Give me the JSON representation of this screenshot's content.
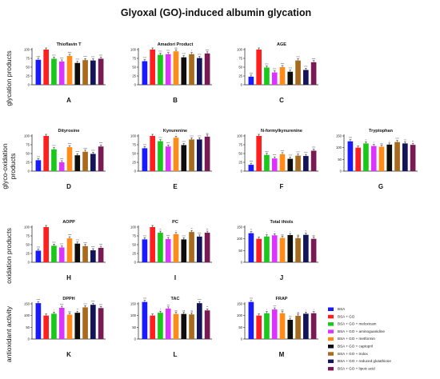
{
  "figure_title": "Glyoxal (GO)-induced albumin glycation",
  "row_labels": [
    [
      "glycation products"
    ],
    [
      "glyco-oxidation",
      "products"
    ],
    [
      "oxidation products"
    ],
    [
      "antioxidant activity"
    ]
  ],
  "legend": {
    "items": [
      {
        "label": "BSA",
        "color": "#1a1aff"
      },
      {
        "label": "BSA + GO",
        "color": "#ff1f1f"
      },
      {
        "label": "BSA + GO + meloxicam",
        "color": "#19c819"
      },
      {
        "label": "BSA + GO + aminoguanidine",
        "color": "#dd33ff"
      },
      {
        "label": "BSA + GO + metformin",
        "color": "#ff8c19"
      },
      {
        "label": "BSA + GO + captopril",
        "color": "#0d0d0d"
      },
      {
        "label": "BSA + GO + trolox",
        "color": "#a86a1c"
      },
      {
        "label": "BSA + GO + reduced glutathione",
        "color": "#14145a"
      },
      {
        "label": "BSA + GO + lipoic acid",
        "color": "#7a1a54"
      }
    ]
  },
  "chart_data": [
    {
      "type": "bar",
      "panel": "A",
      "title": "Thioflavin T",
      "ylim": [
        0,
        100
      ],
      "yticks": [
        0,
        25,
        50,
        75,
        100
      ],
      "categories": [
        "BSA",
        "BSA + GO",
        "BSA + GO + meloxicam",
        "BSA + GO + aminoguanidine",
        "BSA + GO + metformin",
        "BSA + GO + captopril",
        "BSA + GO + trolox",
        "BSA + GO + reduced glutathione",
        "BSA + GO + lipoic acid"
      ],
      "values": [
        71,
        100,
        74,
        66,
        82,
        62,
        70,
        69,
        74
      ],
      "annotations": [
        "****",
        "",
        "****",
        "****",
        "****",
        "****",
        "****",
        "****",
        "****"
      ]
    },
    {
      "type": "bar",
      "panel": "B",
      "title": "Amadori Product",
      "ylim": [
        0,
        100
      ],
      "yticks": [
        0,
        25,
        50,
        75,
        100
      ],
      "categories": [
        "BSA",
        "BSA + GO",
        "BSA + GO + meloxicam",
        "BSA + GO + aminoguanidine",
        "BSA + GO + metformin",
        "BSA + GO + captopril",
        "BSA + GO + trolox",
        "BSA + GO + reduced glutathione",
        "BSA + GO + lipoic acid"
      ],
      "values": [
        67,
        100,
        85,
        87,
        95,
        78,
        87,
        76,
        89
      ],
      "annotations": [
        "****",
        "",
        "****",
        "****",
        "ns",
        "****",
        "*",
        "****",
        "****"
      ]
    },
    {
      "type": "bar",
      "panel": "C",
      "title": "AGE",
      "ylim": [
        0,
        100
      ],
      "yticks": [
        0,
        25,
        50,
        75,
        100
      ],
      "categories": [
        "BSA",
        "BSA + GO",
        "BSA + GO + meloxicam",
        "BSA + GO + aminoguanidine",
        "BSA + GO + metformin",
        "BSA + GO + captopril",
        "BSA + GO + trolox",
        "BSA + GO + reduced glutathione",
        "BSA + GO + lipoic acid"
      ],
      "values": [
        23,
        100,
        49,
        35,
        50,
        37,
        69,
        42,
        64
      ],
      "annotations": [
        "****",
        "",
        "****",
        "****",
        "****",
        "****",
        "****",
        "****",
        "****"
      ]
    },
    {
      "type": "bar",
      "panel": "D",
      "title": "Dityrosine",
      "ylim": [
        0,
        100
      ],
      "yticks": [
        0,
        25,
        50,
        75,
        100
      ],
      "categories": [
        "BSA",
        "BSA + GO",
        "BSA + GO + meloxicam",
        "BSA + GO + aminoguanidine",
        "BSA + GO + metformin",
        "BSA + GO + captopril",
        "BSA + GO + trolox",
        "BSA + GO + reduced glutathione",
        "BSA + GO + lipoic acid"
      ],
      "values": [
        31,
        100,
        62,
        25,
        68,
        45,
        55,
        49,
        70
      ],
      "annotations": [
        "****",
        "",
        "****",
        "****",
        "****",
        "****",
        "****",
        "****",
        "****"
      ]
    },
    {
      "type": "bar",
      "panel": "E",
      "title": "Kynurenine",
      "ylim": [
        0,
        100
      ],
      "yticks": [
        0,
        25,
        50,
        75,
        100
      ],
      "categories": [
        "BSA",
        "BSA + GO",
        "BSA + GO + meloxicam",
        "BSA + GO + aminoguanidine",
        "BSA + GO + metformin",
        "BSA + GO + captopril",
        "BSA + GO + trolox",
        "BSA + GO + reduced glutathione",
        "BSA + GO + lipoic acid"
      ],
      "values": [
        65,
        100,
        85,
        70,
        95,
        74,
        90,
        90,
        98
      ],
      "annotations": [
        "****",
        "",
        "****",
        "****",
        "*",
        "****",
        "****",
        "****",
        "ns"
      ]
    },
    {
      "type": "bar",
      "panel": "F",
      "title": "N-formylkynurenine",
      "ylim": [
        0,
        100
      ],
      "yticks": [
        0,
        25,
        50,
        75,
        100
      ],
      "categories": [
        "BSA",
        "BSA + GO",
        "BSA + GO + meloxicam",
        "BSA + GO + aminoguanidine",
        "BSA + GO + metformin",
        "BSA + GO + captopril",
        "BSA + GO + trolox",
        "BSA + GO + reduced glutathione",
        "BSA + GO + lipoic acid"
      ],
      "values": [
        18,
        100,
        46,
        36,
        48,
        35,
        44,
        43,
        58
      ],
      "annotations": [
        "****",
        "",
        "****",
        "****",
        "****",
        "****",
        "****",
        "****",
        "****"
      ]
    },
    {
      "type": "bar",
      "panel": "G",
      "title": "Tryptophan",
      "ylim": [
        0,
        150
      ],
      "yticks": [
        0,
        50,
        100,
        150
      ],
      "categories": [
        "BSA",
        "BSA + GO",
        "BSA + GO + meloxicam",
        "BSA + GO + aminoguanidine",
        "BSA + GO + metformin",
        "BSA + GO + captopril",
        "BSA + GO + trolox",
        "BSA + GO + reduced glutathione",
        "BSA + GO + lipoic acid"
      ],
      "values": [
        127,
        100,
        118,
        107,
        104,
        113,
        124,
        118,
        112
      ],
      "annotations": [
        "****",
        "",
        "**",
        "*",
        "ns",
        "*",
        "****",
        "***",
        "**"
      ]
    },
    {
      "type": "bar",
      "panel": "H",
      "title": "AOPP",
      "ylim": [
        0,
        100
      ],
      "yticks": [
        0,
        25,
        50,
        75,
        100
      ],
      "categories": [
        "BSA",
        "BSA + GO",
        "BSA + GO + meloxicam",
        "BSA + GO + aminoguanidine",
        "BSA + GO + metformin",
        "BSA + GO + captopril",
        "BSA + GO + trolox",
        "BSA + GO + reduced glutathione",
        "BSA + GO + lipoic acid"
      ],
      "values": [
        33,
        100,
        47,
        42,
        68,
        53,
        46,
        34,
        41
      ],
      "annotations": [
        "****",
        "",
        "****",
        "****",
        "****",
        "****",
        "****",
        "****",
        "****"
      ]
    },
    {
      "type": "bar",
      "panel": "I",
      "title": "PC",
      "ylim": [
        0,
        100
      ],
      "yticks": [
        0,
        25,
        50,
        75,
        100
      ],
      "categories": [
        "BSA",
        "BSA + GO",
        "BSA + GO + meloxicam",
        "BSA + GO + aminoguanidine",
        "BSA + GO + metformin",
        "BSA + GO + captopril",
        "BSA + GO + trolox",
        "BSA + GO + reduced glutathione",
        "BSA + GO + lipoic acid"
      ],
      "values": [
        65,
        100,
        84,
        66,
        80,
        65,
        86,
        73,
        84
      ],
      "annotations": [
        "****",
        "",
        "**",
        "****",
        "*",
        "****",
        "**",
        "****",
        "**"
      ]
    },
    {
      "type": "bar",
      "panel": "J",
      "title": "Total thiols",
      "ylim": [
        0,
        150
      ],
      "yticks": [
        0,
        50,
        100,
        150
      ],
      "categories": [
        "BSA",
        "BSA + GO",
        "BSA + GO + meloxicam",
        "BSA + GO + aminoguanidine",
        "BSA + GO + metformin",
        "BSA + GO + captopril",
        "BSA + GO + trolox",
        "BSA + GO + reduced glutathione",
        "BSA + GO + lipoic acid"
      ],
      "values": [
        124,
        100,
        110,
        115,
        104,
        116,
        103,
        117,
        100
      ],
      "annotations": [
        "**",
        "",
        "*",
        "*",
        "ns",
        "*",
        "ns",
        "**",
        "ns"
      ]
    },
    {
      "type": "bar",
      "panel": "K",
      "title": "DPPH",
      "ylim": [
        0,
        150
      ],
      "yticks": [
        0,
        50,
        100,
        150
      ],
      "categories": [
        "BSA",
        "BSA + GO",
        "BSA + GO + meloxicam",
        "BSA + GO + aminoguanidine",
        "BSA + GO + metformin",
        "BSA + GO + captopril",
        "BSA + GO + trolox",
        "BSA + GO + reduced glutathione",
        "BSA + GO + lipoic acid"
      ],
      "values": [
        153,
        100,
        108,
        133,
        104,
        112,
        135,
        146,
        132
      ],
      "annotations": [
        "****",
        "",
        "*",
        "****",
        "ns",
        "**",
        "****",
        "****",
        "****"
      ]
    },
    {
      "type": "bar",
      "panel": "L",
      "title": "TAC",
      "ylim": [
        0,
        150
      ],
      "yticks": [
        0,
        50,
        100,
        150
      ],
      "categories": [
        "BSA",
        "BSA + GO",
        "BSA + GO + meloxicam",
        "BSA + GO + aminoguanidine",
        "BSA + GO + metformin",
        "BSA + GO + captopril",
        "BSA + GO + trolox",
        "BSA + GO + reduced glutathione",
        "BSA + GO + lipoic acid"
      ],
      "values": [
        158,
        100,
        112,
        130,
        107,
        107,
        105,
        153,
        122
      ],
      "annotations": [
        "****",
        "",
        "*",
        "***",
        "ns",
        "ns",
        "ns",
        "****",
        "**"
      ]
    },
    {
      "type": "bar",
      "panel": "M",
      "title": "FRAP",
      "ylim": [
        0,
        150
      ],
      "yticks": [
        0,
        50,
        100,
        150
      ],
      "categories": [
        "BSA",
        "BSA + GO",
        "BSA + GO + meloxicam",
        "BSA + GO + aminoguanidine",
        "BSA + GO + metformin",
        "BSA + GO + captopril",
        "BSA + GO + trolox",
        "BSA + GO + reduced glutathione",
        "BSA + GO + lipoic acid"
      ],
      "values": [
        158,
        100,
        110,
        126,
        110,
        82,
        99,
        108,
        110
      ],
      "annotations": [
        "****",
        "",
        "*",
        "***",
        "ns",
        "***",
        "ns",
        "*",
        "*"
      ]
    }
  ]
}
